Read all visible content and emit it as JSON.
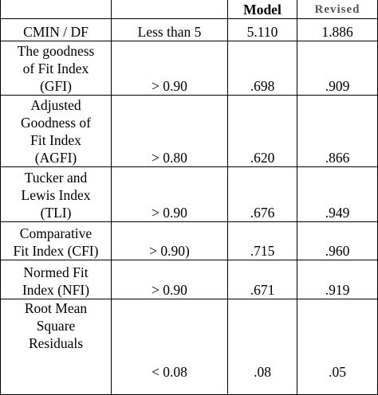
{
  "table": {
    "header": {
      "c1": "",
      "c2": "",
      "c3": "Model",
      "c4": "Revised"
    },
    "rows": [
      {
        "metric": [
          "CMIN / DF"
        ],
        "criterion": "Less than 5",
        "model": "5.110",
        "revised": "1.886"
      },
      {
        "metric": [
          "The goodness",
          "of Fit Index",
          "(GFI)"
        ],
        "criterion": "> 0.90",
        "model": ".698",
        "revised": ".909"
      },
      {
        "metric": [
          "Adjusted",
          "Goodness of",
          "Fit Index",
          "(AGFI)"
        ],
        "criterion": "> 0.80",
        "model": ".620",
        "revised": ".866"
      },
      {
        "metric": [
          "Tucker and",
          "Lewis Index",
          "(TLI)"
        ],
        "criterion": "> 0.90",
        "model": ".676",
        "revised": ".949"
      },
      {
        "metric": [
          "Comparative",
          "Fit Index (CFI)"
        ],
        "criterion": "> 0.90)",
        "model": ".715",
        "revised": ".960"
      },
      {
        "metric": [
          "Normed Fit",
          "Index (NFI)"
        ],
        "criterion": "> 0.90",
        "model": ".671",
        "revised": ".919"
      },
      {
        "metric": [
          "Root Mean",
          "Square",
          "Residuals"
        ],
        "criterion": "< 0.08",
        "model": ".08",
        "revised": ".05"
      }
    ]
  }
}
